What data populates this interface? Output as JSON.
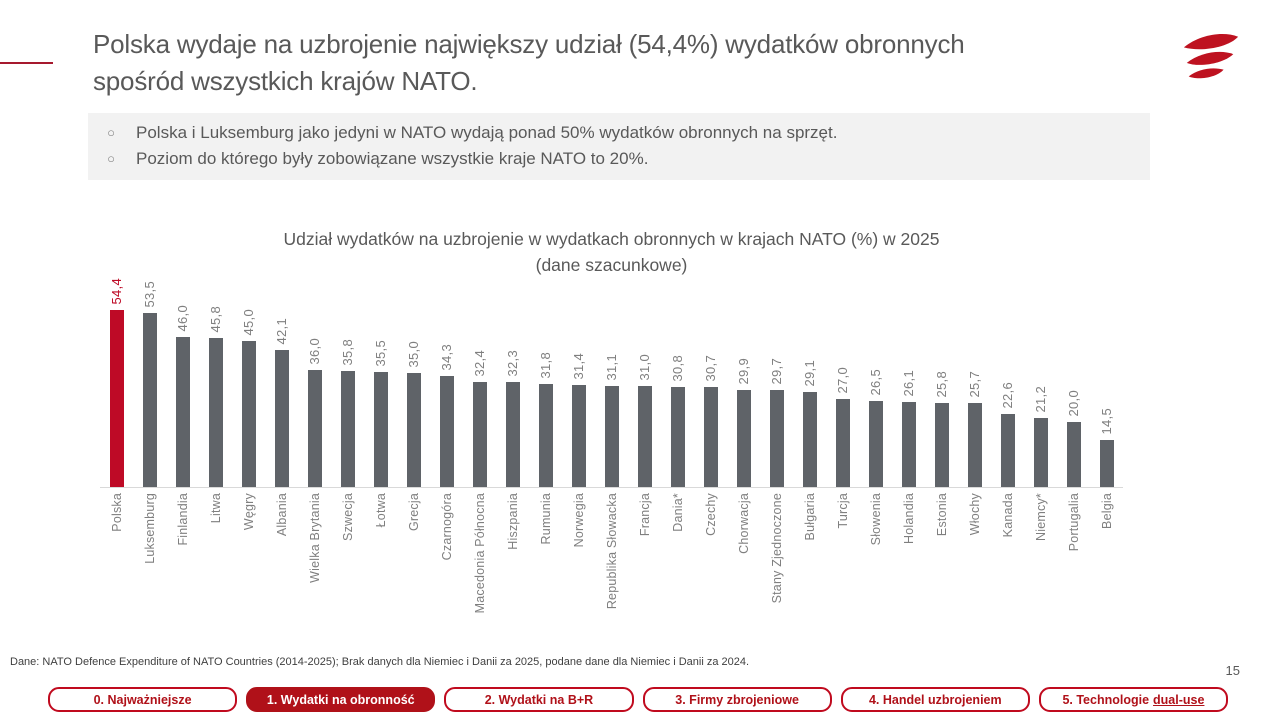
{
  "slide": {
    "title_lines": [
      "Polska wydaje na uzbrojenie największy udział (54,4%) wydatków obronnych",
      "spośród wszystkich krajów NATO."
    ],
    "bullets": [
      "Polska i Luksemburg jako jedyni w NATO wydają ponad 50% wydatków obronnych na sprzęt.",
      "Poziom do którego były zobowiązane wszystkie kraje NATO to 20%."
    ],
    "bullet_marker": "○",
    "source": "Dane: NATO Defence Expenditure of NATO Countries (2014-2025); Brak danych dla Niemiec i Danii za 2025, podane dane dla Niemiec i Danii za 2024.",
    "page_number": "15"
  },
  "chart_data": {
    "type": "bar",
    "title": "Udział wydatków na uzbrojenie w wydatkach obronnych w krajach NATO (%) w 2025",
    "subtitle": "(dane szacunkowe)",
    "categories": [
      "Polska",
      "Luksemburg",
      "Finlandia",
      "Litwa",
      "Węgry",
      "Albania",
      "Wielka Brytania",
      "Szwecja",
      "Łotwa",
      "Grecja",
      "Czarnogóra",
      "Macedonia Północna",
      "Hiszpania",
      "Rumunia",
      "Norwegia",
      "Republika Słowacka",
      "Francja",
      "Dania*",
      "Czechy",
      "Chorwacja",
      "Stany Zjednoczone",
      "Bułgaria",
      "Turcja",
      "Słowenia",
      "Holandia",
      "Estonia",
      "Włochy",
      "Kanada",
      "Niemcy*",
      "Portugalia",
      "Belgia"
    ],
    "values": [
      54.4,
      53.5,
      46.0,
      45.8,
      45.0,
      42.1,
      36.0,
      35.8,
      35.5,
      35.0,
      34.3,
      32.4,
      32.3,
      31.8,
      31.4,
      31.1,
      31.0,
      30.8,
      30.7,
      29.9,
      29.7,
      29.1,
      27.0,
      26.5,
      26.1,
      25.8,
      25.7,
      22.6,
      21.2,
      20.0,
      14.5
    ],
    "value_labels": [
      "54,4",
      "53,5",
      "46,0",
      "45,8",
      "45,0",
      "42,1",
      "36,0",
      "35,8",
      "35,5",
      "35,0",
      "34,3",
      "32,4",
      "32,3",
      "31,8",
      "31,4",
      "31,1",
      "31,0",
      "30,8",
      "30,7",
      "29,9",
      "29,7",
      "29,1",
      "27,0",
      "26,5",
      "26,1",
      "25,8",
      "25,7",
      "22,6",
      "21,2",
      "20,0",
      "14,5"
    ],
    "highlight_index": 0,
    "bar_color": "#5F6368",
    "highlight_color": "#BE0A26",
    "value_color": "#7F7F7F",
    "highlight_value_color": "#BE0A26",
    "xlabel": "",
    "ylabel": "",
    "ylim": [
      0,
      55
    ],
    "grid": false,
    "legend": false,
    "value_labels_rotated": true,
    "category_labels_rotated": true
  },
  "tabs": [
    {
      "label": "0. Najważniejsze",
      "active": false
    },
    {
      "label": "1. Wydatki na obronność",
      "active": true
    },
    {
      "label": "2. Wydatki na B+R",
      "active": false
    },
    {
      "label": "3. Firmy zbrojeniowe",
      "active": false
    },
    {
      "label": "4. Handel uzbrojeniem",
      "active": false
    },
    {
      "label": "5. Technologie",
      "underlined_suffix": "dual-use",
      "active": false
    }
  ],
  "logo_color": "#BE1220"
}
